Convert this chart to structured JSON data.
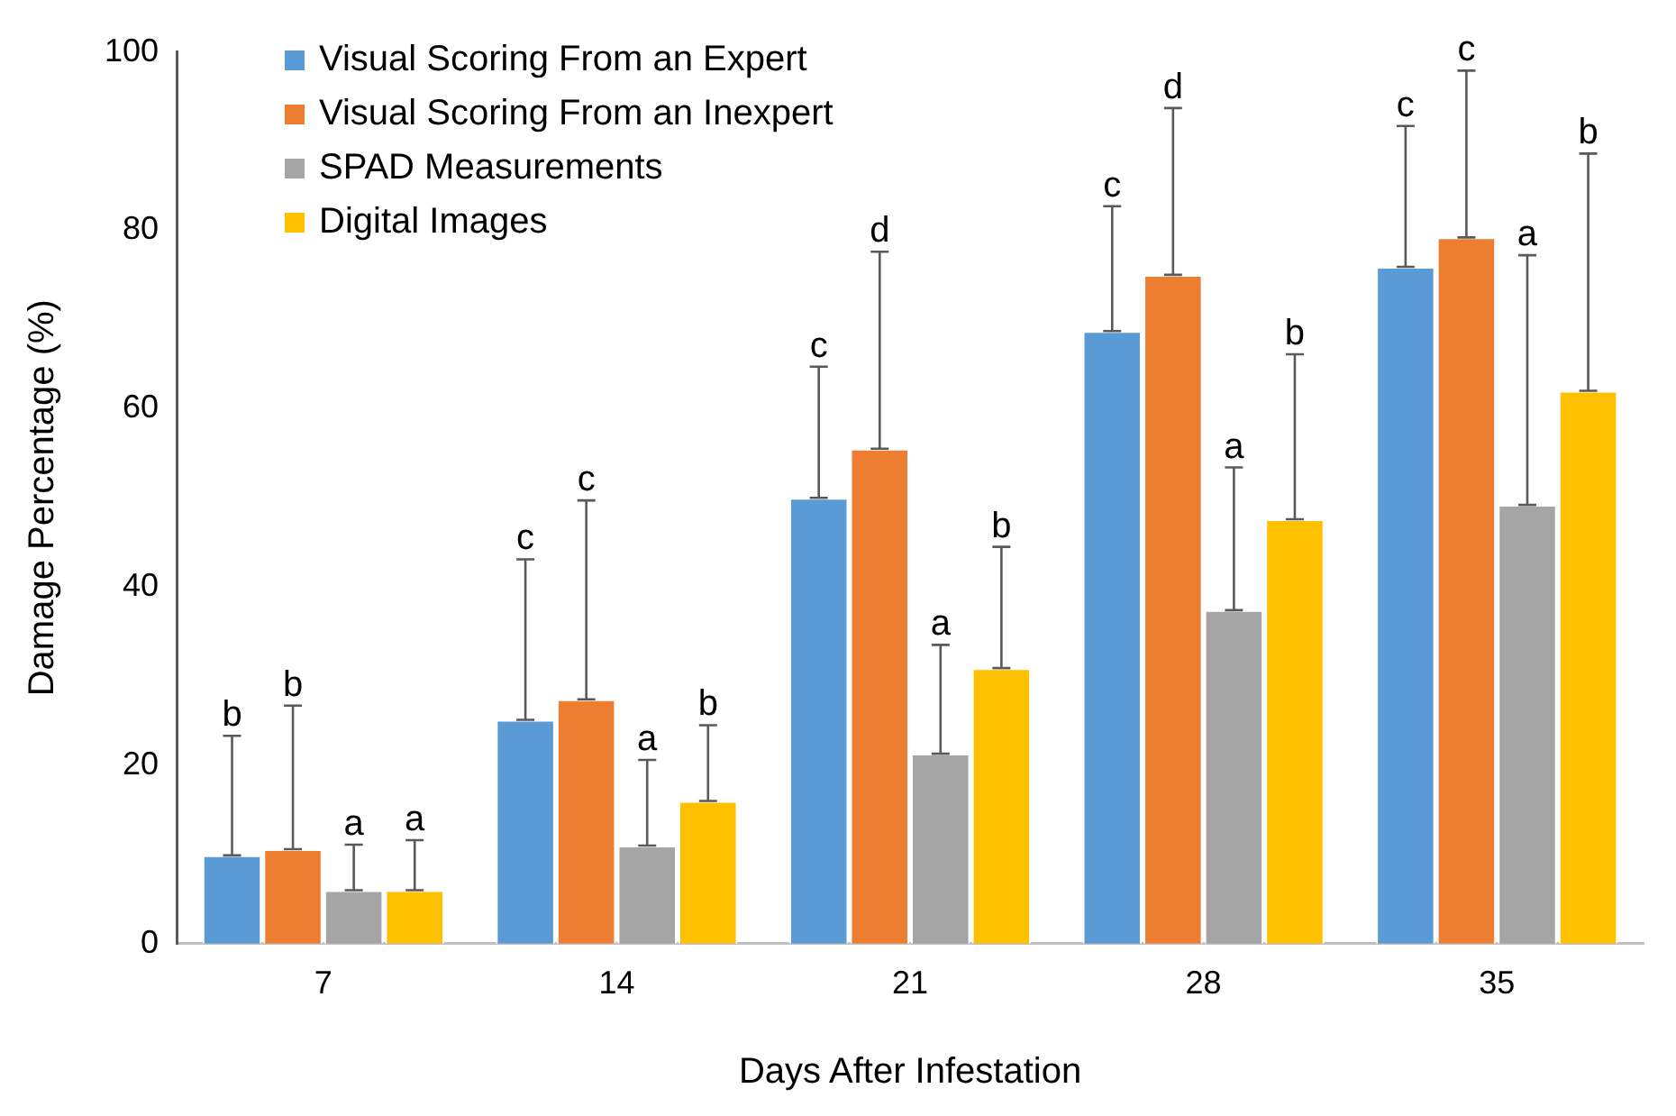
{
  "chart_data": {
    "type": "bar",
    "xlabel": "Days After Infestation",
    "ylabel": "Damage Percentage (%)",
    "categories": [
      "7",
      "14",
      "21",
      "28",
      "35"
    ],
    "ylim": [
      0,
      100
    ],
    "yticks": [
      0,
      20,
      40,
      60,
      80,
      100
    ],
    "grid": false,
    "legend": "top left",
    "series": [
      {
        "name": "Visual Scoring From an Expert",
        "color": "#5b9bd5",
        "values": [
          9.9,
          25.1,
          50.0,
          68.7,
          75.9
        ],
        "errors": [
          [
            9.9,
            23.3
          ],
          [
            25.1,
            43.1
          ],
          [
            50.0,
            64.7
          ],
          [
            68.7,
            82.7
          ],
          [
            75.9,
            91.7
          ]
        ]
      },
      {
        "name": "Visual Scoring From an Inexpert",
        "color": "#ed7d31",
        "values": [
          10.6,
          27.4,
          55.5,
          75.0,
          79.2
        ],
        "errors": [
          [
            10.6,
            26.7
          ],
          [
            27.4,
            49.7
          ],
          [
            55.5,
            77.6
          ],
          [
            75.0,
            93.7
          ],
          [
            79.2,
            97.9
          ]
        ]
      },
      {
        "name": "SPAD Measurements",
        "color": "#a5a5a5",
        "values": [
          6.0,
          11.0,
          21.3,
          37.4,
          49.2
        ],
        "errors": [
          [
            6.0,
            11.1
          ],
          [
            11.0,
            20.6
          ],
          [
            21.3,
            33.5
          ],
          [
            37.4,
            53.4
          ],
          [
            49.2,
            77.2
          ]
        ]
      },
      {
        "name": "Digital Images",
        "color": "#ffc000",
        "values": [
          6.0,
          16.0,
          30.9,
          47.6,
          62.0
        ],
        "errors": [
          [
            6.0,
            11.6
          ],
          [
            16.0,
            24.5
          ],
          [
            30.9,
            44.5
          ],
          [
            47.6,
            66.1
          ],
          [
            62.0,
            88.6
          ]
        ]
      }
    ],
    "annotations": [
      "b",
      "b",
      "a",
      "a",
      "c",
      "c",
      "a",
      "b",
      "c",
      "d",
      "a",
      "b",
      "c",
      "d",
      "a",
      "b",
      "c",
      "c",
      "a",
      "b"
    ]
  }
}
